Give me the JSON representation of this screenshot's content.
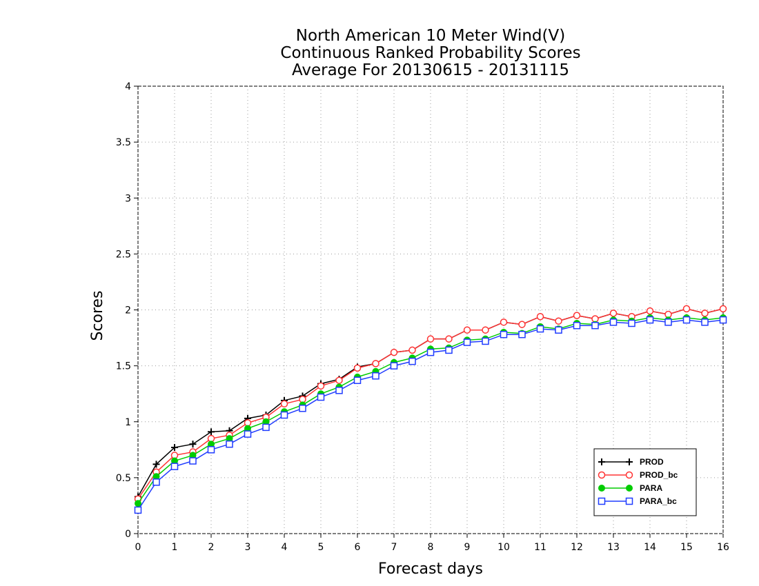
{
  "chart_data": {
    "type": "line",
    "title_lines": [
      "North American 10 Meter Wind(V)",
      "Continuous Ranked Probability Scores",
      "Average For 20130615 - 20131115"
    ],
    "xlabel": "Forecast days",
    "ylabel": "Scores",
    "xlim": [
      0,
      16
    ],
    "ylim": [
      0,
      4
    ],
    "x_ticks": [
      "0",
      "1",
      "2",
      "3",
      "4",
      "5",
      "6",
      "7",
      "8",
      "9",
      "10",
      "11",
      "12",
      "13",
      "14",
      "15",
      "16"
    ],
    "y_ticks": [
      "0",
      "0.5",
      "1",
      "1.5",
      "2",
      "2.5",
      "3",
      "3.5",
      "4"
    ],
    "grid": true,
    "legend_position": "bottom-right",
    "x": [
      0,
      0.5,
      1,
      1.5,
      2,
      2.5,
      3,
      3.5,
      4,
      4.5,
      5,
      5.5,
      6,
      6.5,
      7,
      7.5,
      8,
      8.5,
      9,
      9.5,
      10,
      10.5,
      11,
      11.5,
      12,
      12.5,
      13,
      13.5,
      14,
      14.5,
      15,
      15.5,
      16
    ],
    "series": [
      {
        "name": "PROD",
        "color": "#000000",
        "marker": "plus",
        "values": [
          0.33,
          0.62,
          0.77,
          0.8,
          0.91,
          0.92,
          1.03,
          1.06,
          1.19,
          1.23,
          1.34,
          1.38,
          1.49,
          1.52,
          1.62,
          1.64,
          1.74,
          1.74,
          1.82,
          1.82,
          1.89,
          1.87,
          1.94,
          1.9,
          1.95,
          1.92,
          1.97,
          1.94,
          1.99,
          1.96,
          2.01,
          1.97,
          2.01
        ]
      },
      {
        "name": "PROD_bc",
        "color": "#ff3333",
        "marker": "circle",
        "values": [
          0.31,
          0.55,
          0.7,
          0.73,
          0.85,
          0.88,
          0.99,
          1.04,
          1.16,
          1.2,
          1.32,
          1.37,
          1.48,
          1.52,
          1.62,
          1.64,
          1.74,
          1.74,
          1.82,
          1.82,
          1.89,
          1.87,
          1.94,
          1.9,
          1.95,
          1.92,
          1.97,
          1.94,
          1.99,
          1.96,
          2.01,
          1.97,
          2.01
        ]
      },
      {
        "name": "PARA",
        "color": "#00cc00",
        "marker": "filled-circle",
        "values": [
          0.27,
          0.51,
          0.65,
          0.7,
          0.8,
          0.85,
          0.94,
          1.0,
          1.09,
          1.15,
          1.25,
          1.31,
          1.4,
          1.45,
          1.53,
          1.57,
          1.65,
          1.66,
          1.73,
          1.74,
          1.8,
          1.79,
          1.85,
          1.83,
          1.88,
          1.87,
          1.91,
          1.9,
          1.93,
          1.91,
          1.93,
          1.91,
          1.93
        ]
      },
      {
        "name": "PARA_bc",
        "color": "#1f3bff",
        "marker": "square",
        "values": [
          0.21,
          0.46,
          0.6,
          0.65,
          0.75,
          0.8,
          0.89,
          0.95,
          1.06,
          1.12,
          1.22,
          1.28,
          1.37,
          1.41,
          1.5,
          1.54,
          1.62,
          1.64,
          1.71,
          1.72,
          1.78,
          1.78,
          1.83,
          1.82,
          1.86,
          1.86,
          1.89,
          1.88,
          1.91,
          1.89,
          1.91,
          1.89,
          1.91
        ]
      }
    ]
  }
}
